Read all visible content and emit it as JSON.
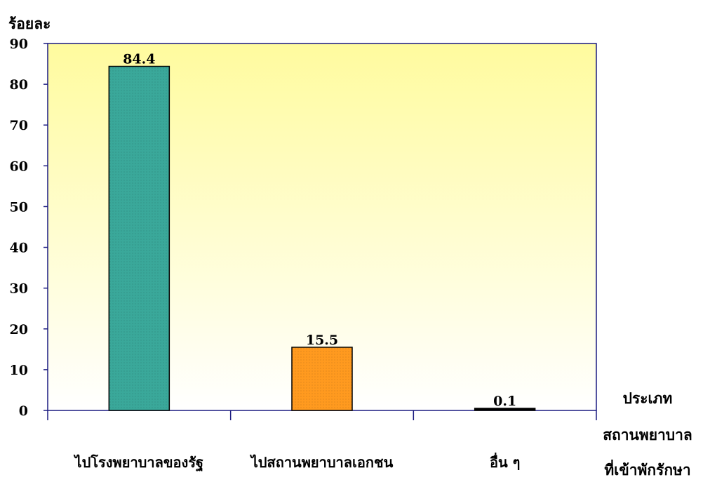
{
  "chart_data": {
    "type": "bar",
    "ylabel": "ร้อยละ",
    "xlabel_lines": [
      "ประเภท",
      "สถานพยาบาล",
      "ที่เข้าพักรักษา"
    ],
    "categories": [
      "ไปโรงพยาบาลของรัฐ",
      "ไปสถานพยาบาลเอกชน",
      "อื่น ๆ"
    ],
    "values": [
      84.4,
      15.5,
      0.1
    ],
    "data_labels": [
      "84.4",
      "15.5",
      "0.1"
    ],
    "ylim": [
      0,
      90
    ],
    "yticks": [
      0,
      10,
      20,
      30,
      40,
      50,
      60,
      70,
      80,
      90
    ],
    "bar_colors": [
      "#3aa89a",
      "#ff9a1f",
      "#000000"
    ],
    "background_gradient": [
      "#fffb9e",
      "#ffffff"
    ],
    "axis_color": "#1a1a80",
    "grid": false,
    "legend": "none"
  }
}
